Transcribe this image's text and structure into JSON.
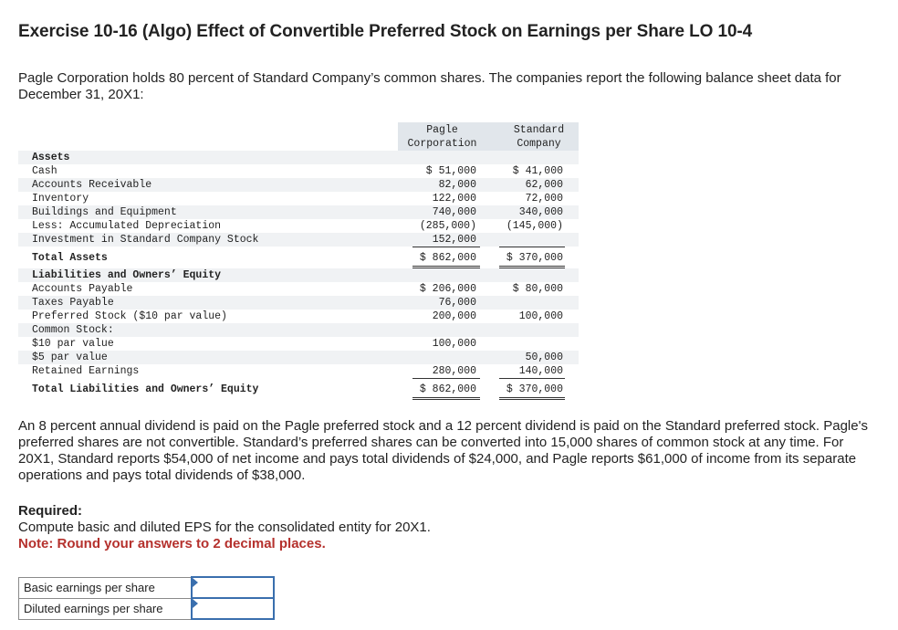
{
  "title": "Exercise 10-16 (Algo) Effect of Convertible Preferred Stock on Earnings per Share LO 10-4",
  "intro": "Pagle Corporation holds 80 percent of Standard Company’s common shares. The companies report the following balance sheet data for December 31, 20X1:",
  "table": {
    "col1_header_line1": "Pagle",
    "col1_header_line2": "Corporation",
    "col2_header_line1": "Standard",
    "col2_header_line2": "Company",
    "rows": [
      {
        "label": "Assets",
        "v1": "",
        "v2": ""
      },
      {
        "label": "Cash",
        "v1": "$ 51,000",
        "v2": "$ 41,000"
      },
      {
        "label": "Accounts Receivable",
        "v1": "82,000",
        "v2": "62,000"
      },
      {
        "label": "Inventory",
        "v1": "122,000",
        "v2": "72,000"
      },
      {
        "label": "Buildings and Equipment",
        "v1": "740,000",
        "v2": "340,000"
      },
      {
        "label": "Less: Accumulated Depreciation",
        "v1": "(285,000)",
        "v2": "(145,000)"
      },
      {
        "label": "Investment in Standard Company Stock",
        "v1": "152,000",
        "v2": ""
      },
      {
        "label": "Total Assets",
        "v1": "$ 862,000",
        "v2": "$ 370,000"
      },
      {
        "label": "Liabilities and Owners’ Equity",
        "v1": "",
        "v2": ""
      },
      {
        "label": "Accounts Payable",
        "v1": "$ 206,000",
        "v2": "$ 80,000"
      },
      {
        "label": "Taxes Payable",
        "v1": "76,000",
        "v2": ""
      },
      {
        "label": "Preferred Stock ($10 par value)",
        "v1": "200,000",
        "v2": "100,000"
      },
      {
        "label": "Common Stock:",
        "v1": "",
        "v2": ""
      },
      {
        "label": "$10 par value",
        "v1": "100,000",
        "v2": ""
      },
      {
        "label": "$5 par value",
        "v1": "",
        "v2": "50,000"
      },
      {
        "label": "Retained Earnings",
        "v1": "280,000",
        "v2": "140,000"
      },
      {
        "label": "Total Liabilities and Owners’ Equity",
        "v1": "$ 862,000",
        "v2": "$ 370,000"
      }
    ]
  },
  "paragraph": "An 8 percent annual dividend is paid on the Pagle preferred stock and a 12 percent dividend is paid on the Standard preferred stock. Pagle's preferred shares are not convertible. Standard’s preferred shares can be converted into 15,000 shares of common stock at any time. For 20X1, Standard reports $54,000 of net income and pays total dividends of $24,000, and Pagle reports $61,000 of income from its separate operations and pays total dividends of $38,000.",
  "required": {
    "label": "Required:",
    "text": "Compute basic and diluted EPS for the consolidated entity for 20X1.",
    "note": "Note: Round your answers to 2 decimal places."
  },
  "answers": {
    "basic_label": "Basic earnings per share",
    "basic_value": "",
    "diluted_label": "Diluted earnings per share",
    "diluted_value": ""
  }
}
